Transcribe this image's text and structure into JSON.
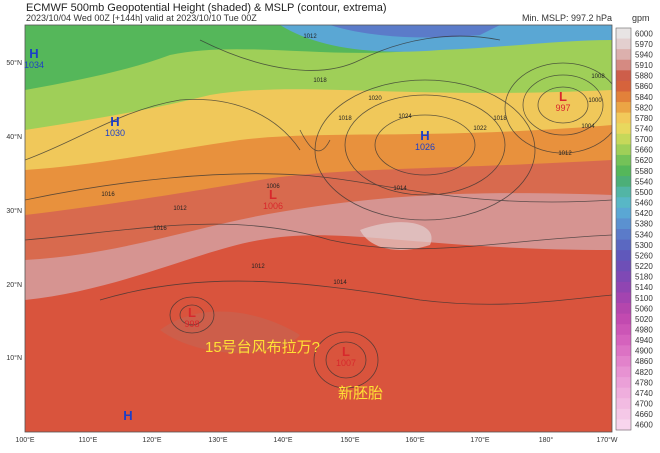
{
  "header": {
    "title": "ECMWF 500mb Geopotential Height (shaded) & MSLP (contour, extrema)",
    "subtitle": "2023/10/04 Wed 00Z [+144h] valid at 2023/10/10 Tue 00Z",
    "min_mslp": "Min. MSLP: 997.2 hPa"
  },
  "colorbar": {
    "unit": "gpm",
    "labels": [
      "6000",
      "5970",
      "5940",
      "5910",
      "5880",
      "5860",
      "5840",
      "5820",
      "5780",
      "5740",
      "5700",
      "5660",
      "5620",
      "5580",
      "5540",
      "5500",
      "5460",
      "5420",
      "5380",
      "5340",
      "5300",
      "5260",
      "5220",
      "5180",
      "5140",
      "5100",
      "5060",
      "5020",
      "4980",
      "4940",
      "4900",
      "4860",
      "4820",
      "4780",
      "4740",
      "4700",
      "4660",
      "4600"
    ],
    "colors": [
      "#e8e4e4",
      "#e3cfcf",
      "#dcb0ad",
      "#d58a82",
      "#cd5e4a",
      "#d6633c",
      "#e2813a",
      "#eba545",
      "#f2c95a",
      "#e8d85e",
      "#c6d85a",
      "#9fcf58",
      "#74c258",
      "#55b75a",
      "#4caf78",
      "#52b5a5",
      "#58b7c6",
      "#5aa7d4",
      "#5b91d0",
      "#5b7bc9",
      "#5b68c1",
      "#6058bb",
      "#6e4fb7",
      "#7f49b5",
      "#9045b2",
      "#a344b0",
      "#b446ad",
      "#c24ab0",
      "#cc55b6",
      "#d562bd",
      "#dc72c4",
      "#e282cb",
      "#e792d2",
      "#eba0d8",
      "#efaedd",
      "#f2bbe2",
      "#f5c8e7",
      "#f8d5ed"
    ]
  },
  "axes": {
    "lon": [
      "100°E",
      "110°E",
      "120°E",
      "130°E",
      "140°E",
      "150°E",
      "160°E",
      "170°E",
      "180°",
      "170°W"
    ],
    "lat": [
      "50°N",
      "40°N",
      "30°N",
      "20°N",
      "10°N"
    ]
  },
  "centers": [
    {
      "type": "H",
      "value": "1034"
    },
    {
      "type": "H",
      "value": "1030"
    },
    {
      "type": "L",
      "value": "1006"
    },
    {
      "type": "H",
      "value": "1026"
    },
    {
      "type": "L",
      "value": "997"
    },
    {
      "type": "L",
      "value": "998"
    },
    {
      "type": "L",
      "value": "1007"
    },
    {
      "type": "H"
    }
  ],
  "contour_labels": [
    "1006",
    "1012",
    "1016",
    "1020",
    "1024",
    "1022",
    "1018",
    "1014",
    "1008",
    "1004",
    "1000",
    "1012",
    "1018",
    "1012",
    "1016",
    "1018",
    "1012",
    "1014"
  ],
  "annotations": [
    "15号台风布拉万?",
    "新胚胎"
  ]
}
